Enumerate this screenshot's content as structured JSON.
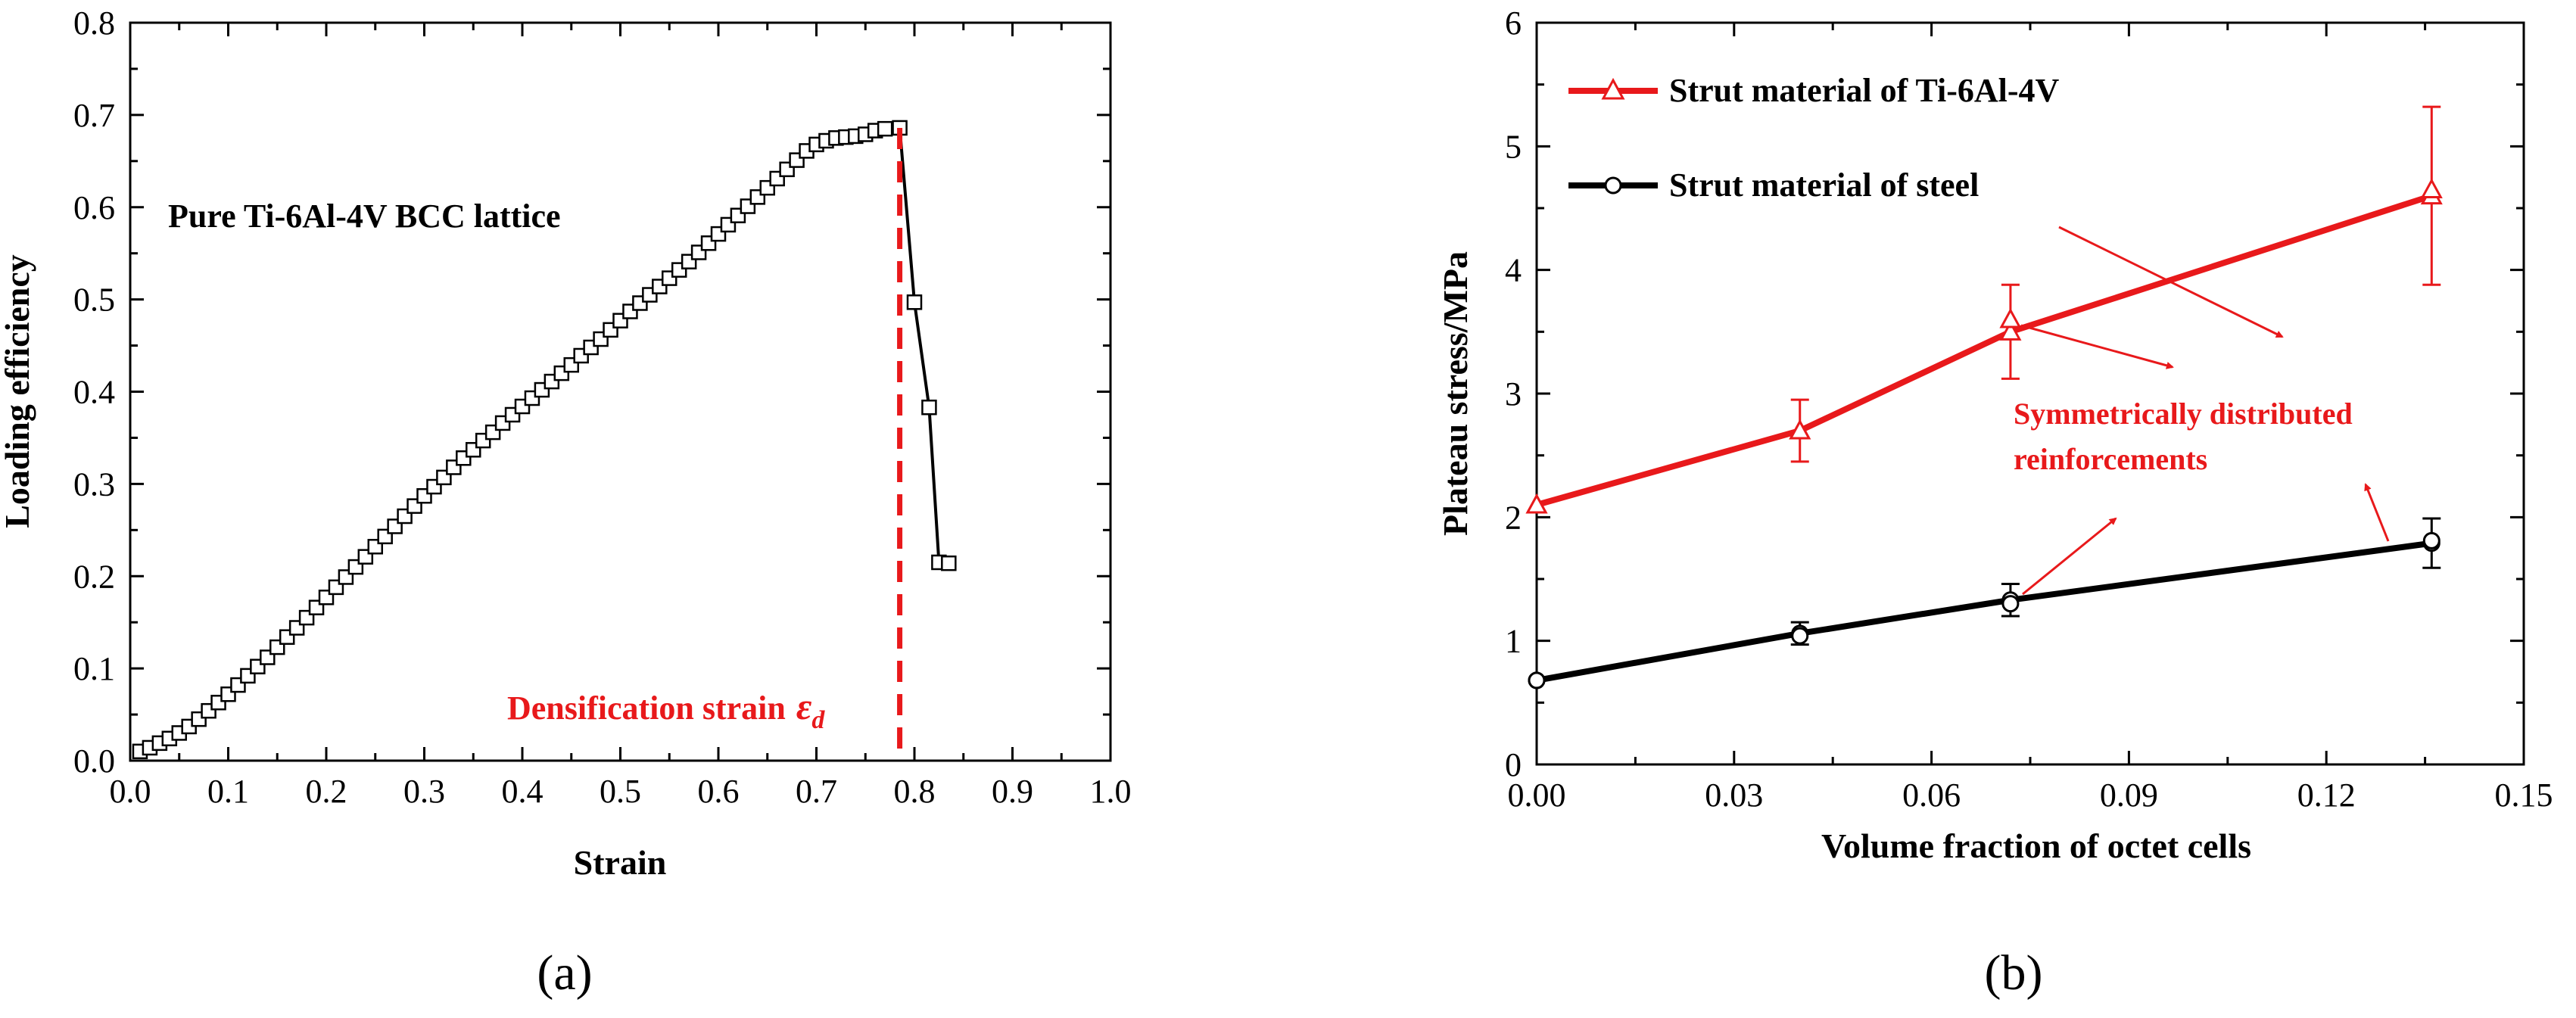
{
  "chart_data": [
    {
      "panel": "a",
      "type": "line",
      "caption": "(a)",
      "title": "",
      "xlabel": "Strain",
      "ylabel": "Loading efficiency",
      "xlim": [
        0.0,
        1.0
      ],
      "ylim": [
        0.0,
        0.8
      ],
      "xticks": [
        "0.0",
        "0.1",
        "0.2",
        "0.3",
        "0.4",
        "0.5",
        "0.6",
        "0.7",
        "0.8",
        "0.9",
        "1.0"
      ],
      "yticks": [
        "0.0",
        "0.1",
        "0.2",
        "0.3",
        "0.4",
        "0.5",
        "0.6",
        "0.7",
        "0.8"
      ],
      "annotation": "Pure Ti-6Al-4V BCC lattice",
      "densification_label": "Densification strain",
      "densification_symbol": "ε",
      "densification_subscript": "d",
      "densification_strain": 0.785,
      "color_line": "#000000",
      "color_marker_face": "#ffffff",
      "color_densification": "#e8191b",
      "series": [
        {
          "name": "Loading efficiency",
          "x": [
            0.01,
            0.02,
            0.03,
            0.04,
            0.05,
            0.06,
            0.07,
            0.08,
            0.09,
            0.1,
            0.11,
            0.12,
            0.13,
            0.14,
            0.15,
            0.16,
            0.17,
            0.18,
            0.19,
            0.2,
            0.21,
            0.22,
            0.23,
            0.24,
            0.25,
            0.26,
            0.27,
            0.28,
            0.29,
            0.3,
            0.31,
            0.32,
            0.33,
            0.34,
            0.35,
            0.36,
            0.37,
            0.38,
            0.39,
            0.4,
            0.41,
            0.42,
            0.43,
            0.44,
            0.45,
            0.46,
            0.47,
            0.48,
            0.49,
            0.5,
            0.51,
            0.52,
            0.53,
            0.54,
            0.55,
            0.56,
            0.57,
            0.58,
            0.59,
            0.6,
            0.61,
            0.62,
            0.63,
            0.64,
            0.65,
            0.66,
            0.67,
            0.68,
            0.69,
            0.7,
            0.71,
            0.72,
            0.73,
            0.74,
            0.75,
            0.76,
            0.77,
            0.785,
            0.8,
            0.815,
            0.825,
            0.835
          ],
          "y": [
            0.01,
            0.014,
            0.019,
            0.024,
            0.03,
            0.037,
            0.045,
            0.054,
            0.063,
            0.072,
            0.082,
            0.092,
            0.102,
            0.112,
            0.123,
            0.134,
            0.144,
            0.155,
            0.166,
            0.177,
            0.188,
            0.199,
            0.21,
            0.221,
            0.232,
            0.243,
            0.254,
            0.265,
            0.276,
            0.287,
            0.297,
            0.307,
            0.318,
            0.328,
            0.337,
            0.347,
            0.356,
            0.366,
            0.375,
            0.384,
            0.393,
            0.402,
            0.411,
            0.42,
            0.429,
            0.439,
            0.448,
            0.457,
            0.467,
            0.477,
            0.487,
            0.496,
            0.505,
            0.514,
            0.523,
            0.532,
            0.541,
            0.551,
            0.561,
            0.571,
            0.581,
            0.591,
            0.601,
            0.611,
            0.621,
            0.631,
            0.641,
            0.651,
            0.661,
            0.668,
            0.672,
            0.675,
            0.676,
            0.677,
            0.679,
            0.683,
            0.685,
            0.686,
            0.497,
            0.383,
            0.215,
            0.214
          ]
        }
      ]
    },
    {
      "panel": "b",
      "type": "line",
      "caption": "(b)",
      "title": "",
      "xlabel": "Volume fraction of octet cells",
      "ylabel": "Plateau stress/MPa",
      "xlim": [
        0.0,
        0.15
      ],
      "ylim": [
        0,
        6
      ],
      "xticks": [
        "0.00",
        "0.03",
        "0.06",
        "0.09",
        "0.12",
        "0.15"
      ],
      "yticks": [
        "0",
        "1",
        "2",
        "3",
        "4",
        "5",
        "6"
      ],
      "legend_position": "top-left",
      "annotation_line1": "Symmetrically distributed",
      "annotation_line2": "reinforcements",
      "color_annotation": "#e8191b",
      "series": [
        {
          "name": "Strut material of Ti-6Al-4V",
          "color": "#e8191b",
          "marker": "triangle",
          "x": [
            0.0,
            0.04,
            0.072,
            0.136
          ],
          "y": [
            2.1,
            2.7,
            3.5,
            4.6
          ],
          "err": [
            0.0,
            0.25,
            0.38,
            0.72
          ],
          "scatter_y": [
            2.1,
            2.7,
            3.6,
            4.65
          ]
        },
        {
          "name": "Strut material of steel",
          "color": "#000000",
          "marker": "circle",
          "x": [
            0.0,
            0.04,
            0.072,
            0.136
          ],
          "y": [
            0.68,
            1.06,
            1.33,
            1.79
          ],
          "err": [
            0.0,
            0.09,
            0.13,
            0.2
          ],
          "scatter_y": [
            0.68,
            1.04,
            1.3,
            1.81
          ]
        }
      ]
    }
  ]
}
